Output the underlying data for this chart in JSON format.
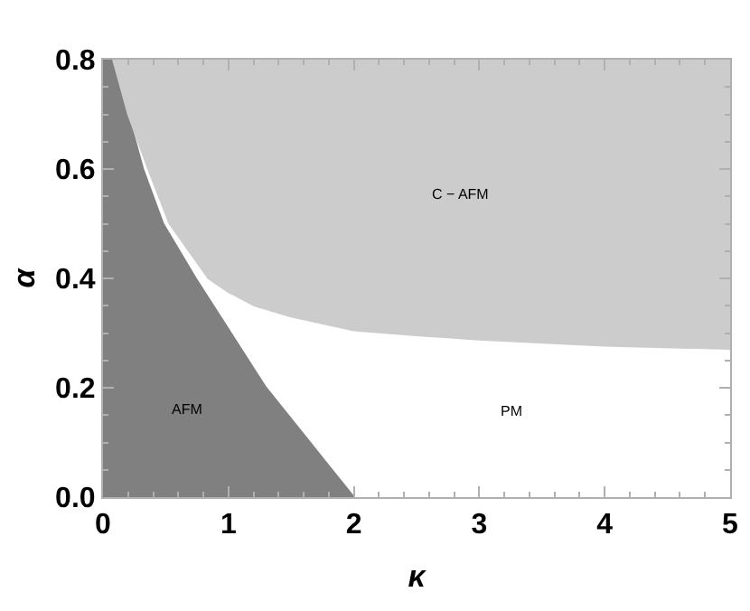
{
  "chart_data": {
    "type": "area",
    "xlabel": "κ",
    "ylabel": "α",
    "xlim": [
      0,
      5
    ],
    "ylim": [
      0,
      0.8
    ],
    "xticks": [
      0,
      1,
      2,
      3,
      4,
      5
    ],
    "yticks": [
      {
        "value": 0,
        "label": "0.0"
      },
      {
        "value": 0.2,
        "label": "0.2"
      },
      {
        "value": 0.4,
        "label": "0.4"
      },
      {
        "value": 0.6,
        "label": "0.6"
      },
      {
        "value": 0.8,
        "label": "0.8"
      }
    ],
    "series": [
      {
        "color": "#808080",
        "x": [
          0,
          0.08,
          0.32,
          0.48,
          0.74,
          1.02,
          1.3,
          1.65,
          2
        ],
        "values": [
          0.8,
          0.8,
          0.6,
          0.5,
          0.4,
          0.3,
          0.2,
          0.1,
          0
        ]
      },
      {
        "type": "line",
        "color": "#cccccc",
        "x": [
          0.08,
          0.2,
          0.36,
          0.53,
          0.84,
          1.0,
          1.21,
          1.5,
          2,
          2.5,
          3,
          4,
          5
        ],
        "values": [
          0.8,
          0.7,
          0.6,
          0.5,
          0.4,
          0.375,
          0.35,
          0.33,
          0.305,
          0.296,
          0.288,
          0.277,
          0.271
        ],
        "lower": [
          0.8,
          0.7,
          0.6,
          0.5,
          0.4,
          0.375,
          0.35,
          0.33,
          0.305,
          0.296,
          0.288,
          0.277,
          0.271
        ],
        "upper": [
          0.8,
          0.8,
          0.8,
          0.8,
          0.8,
          0.8,
          0.8,
          0.8,
          0.8,
          0.8,
          0.8,
          0.8,
          0.8
        ]
      }
    ],
    "annotations": [
      "AFM",
      "C − AFM",
      "PM"
    ]
  }
}
